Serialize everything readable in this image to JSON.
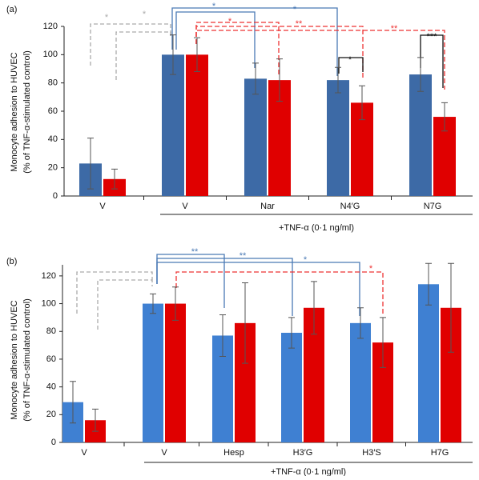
{
  "chart_data": [
    {
      "type": "bar",
      "label": "(a)",
      "ylabel": [
        "Monocyte adhesion to HUVEC",
        "(% of TNF-α-stimulated control)"
      ],
      "xlabel": "+TNF-α (0·1 ng/ml)",
      "categories": [
        "V",
        "V",
        "Nar",
        "N4′G",
        "N7G"
      ],
      "series": [
        {
          "color": "#3d6aa6",
          "values": [
            23,
            100,
            83,
            82,
            86
          ],
          "errors": [
            18,
            14,
            11,
            9,
            12
          ]
        },
        {
          "color": "#e00000",
          "values": [
            12,
            100,
            82,
            66,
            56
          ],
          "errors": [
            7,
            12,
            15,
            12,
            10
          ]
        }
      ],
      "ylim": [
        0,
        120
      ],
      "yticks": [
        0,
        20,
        40,
        60,
        80,
        100,
        120
      ],
      "annotations": [
        "*",
        "*",
        "*",
        "*",
        "*",
        "**",
        "**",
        "*",
        "***"
      ]
    },
    {
      "type": "bar",
      "label": "(b)",
      "ylabel": [
        "Monocyte adhesion to HUVEC",
        "(% of TNF-α-stimulated control)"
      ],
      "xlabel": "+TNF-α (0·1 ng/ml)",
      "categories": [
        "V",
        "V",
        "Hesp",
        "H3′G",
        "H3′S",
        "H7G"
      ],
      "series": [
        {
          "color": "#3f80d2",
          "values": [
            29,
            100,
            77,
            79,
            86,
            114
          ],
          "errors": [
            15,
            7,
            15,
            11,
            11,
            15
          ]
        },
        {
          "color": "#e00000",
          "values": [
            16,
            100,
            86,
            97,
            72,
            97
          ],
          "errors": [
            8,
            12,
            29,
            19,
            18,
            32
          ]
        }
      ],
      "ylim": [
        0,
        128
      ],
      "yticks": [
        0,
        20,
        40,
        60,
        80,
        100,
        120
      ],
      "annotations": [
        "**",
        "**",
        "*",
        "*"
      ]
    }
  ]
}
